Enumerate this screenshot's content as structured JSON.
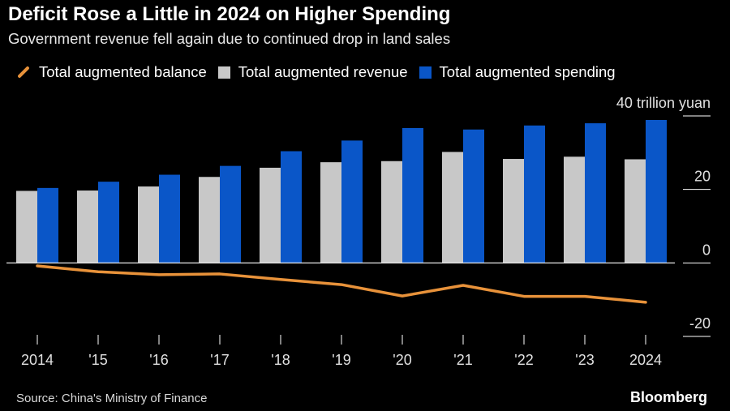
{
  "title": "Deficit Rose a Little in 2024 on Higher Spending",
  "subtitle": "Government revenue fell again due to continued drop in land sales",
  "legend": {
    "balance": "Total augmented balance",
    "revenue": "Total augmented revenue",
    "spending": "Total augmented spending"
  },
  "source": "Source: China's Ministry of Finance",
  "brand": "Bloomberg",
  "colors": {
    "balance": "#e8923a",
    "revenue": "#c8c8c8",
    "spending": "#0a56c8",
    "background": "#000000"
  },
  "chart_data": {
    "type": "bar",
    "categories": [
      "2014",
      "'15",
      "'16",
      "'17",
      "'18",
      "'19",
      "'20",
      "'21",
      "'22",
      "'23",
      "2024"
    ],
    "series": [
      {
        "name": "Total augmented revenue",
        "type": "bar",
        "values": [
          19.6,
          19.7,
          20.8,
          23.4,
          25.9,
          27.4,
          27.7,
          30.2,
          28.3,
          28.9,
          28.2
        ]
      },
      {
        "name": "Total augmented spending",
        "type": "bar",
        "values": [
          20.4,
          22.1,
          24.0,
          26.4,
          30.4,
          33.3,
          36.7,
          36.3,
          37.4,
          38.0,
          38.9
        ]
      },
      {
        "name": "Total augmented balance",
        "type": "line",
        "values": [
          -0.8,
          -2.4,
          -3.2,
          -3.0,
          -4.5,
          -5.9,
          -9.0,
          -6.1,
          -9.1,
          -9.1,
          -10.7
        ]
      }
    ],
    "y_axis_unit": "40 trillion yuan",
    "yticks": [
      {
        "value": 40,
        "label": "40 trillion yuan"
      },
      {
        "value": 20,
        "label": "20"
      },
      {
        "value": 0,
        "label": "0"
      },
      {
        "value": -20,
        "label": "-20"
      }
    ],
    "ylim": [
      -20,
      40
    ],
    "axis_side": "right",
    "legend_position": "top"
  }
}
